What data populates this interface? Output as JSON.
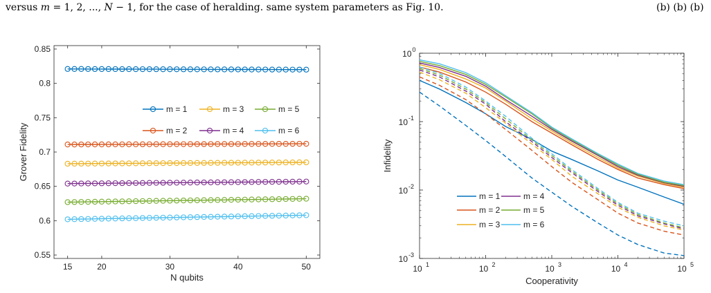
{
  "caption": {
    "prefix": "versus",
    "var": "m",
    "middle": "= 1, 2, ..., ",
    "var2": "N",
    "suffix": " − 1, for the case of heralding. same system parameters as Fig. 10.",
    "right_fragment": "(b) (b) (b)"
  },
  "chart_data": [
    {
      "type": "line",
      "xlabel": "N qubits",
      "ylabel": "Grover Fidelity",
      "xlim": [
        13,
        52
      ],
      "ylim": [
        0.545,
        0.855
      ],
      "xticks": [
        15,
        20,
        30,
        40,
        50
      ],
      "yticks": [
        0.55,
        0.6,
        0.65,
        0.7,
        0.75,
        0.8,
        0.85
      ],
      "ytick_labels": [
        "0.55",
        "0.6",
        "0.65",
        "0.7",
        "0.75",
        "0.8",
        "0.85"
      ],
      "grid": false,
      "legend": {
        "placement": "top-right",
        "columns": 3
      },
      "x": [
        15,
        16,
        17,
        18,
        19,
        20,
        21,
        22,
        23,
        24,
        25,
        26,
        27,
        28,
        29,
        30,
        31,
        32,
        33,
        34,
        35,
        36,
        37,
        38,
        39,
        40,
        41,
        42,
        43,
        44,
        45,
        46,
        47,
        48,
        49,
        50
      ],
      "series": [
        {
          "name": "m = 1",
          "color": "#0072BD",
          "y_start": 0.821,
          "y_end": 0.82
        },
        {
          "name": "m = 2",
          "color": "#D95319",
          "y_start": 0.711,
          "y_end": 0.712
        },
        {
          "name": "m = 3",
          "color": "#EDB120",
          "y_start": 0.683,
          "y_end": 0.685
        },
        {
          "name": "m = 4",
          "color": "#7E2F8E",
          "y_start": 0.654,
          "y_end": 0.657
        },
        {
          "name": "m = 5",
          "color": "#77AC30",
          "y_start": 0.627,
          "y_end": 0.632
        },
        {
          "name": "m = 6",
          "color": "#4DBEEE",
          "y_start": 0.602,
          "y_end": 0.608
        }
      ]
    },
    {
      "type": "line",
      "xlabel": "Cooperativity",
      "ylabel": "Infidelity",
      "xscale": "log",
      "yscale": "log",
      "xlim": [
        10,
        100000
      ],
      "ylim": [
        0.001,
        1
      ],
      "xticks": [
        {
          "base": "10",
          "exp": "1",
          "value": 10
        },
        {
          "base": "10",
          "exp": "2",
          "value": 100
        },
        {
          "base": "10",
          "exp": "3",
          "value": 1000
        },
        {
          "base": "10",
          "exp": "4",
          "value": 10000
        },
        {
          "base": "10",
          "exp": "5",
          "value": 100000
        }
      ],
      "yticks": [
        {
          "base": "10",
          "exp": "-3",
          "value": 0.001
        },
        {
          "base": "10",
          "exp": "-2",
          "value": 0.01
        },
        {
          "base": "10",
          "exp": "-1",
          "value": 0.1
        },
        {
          "base": "10",
          "exp": "0",
          "value": 1
        }
      ],
      "grid": false,
      "legend": {
        "placement": "bottom-left",
        "columns": 2
      },
      "x": [
        10,
        20,
        50,
        100,
        200,
        500,
        1000,
        2000,
        5000,
        10000,
        20000,
        50000,
        100000
      ],
      "series": [
        {
          "name": "m = 1",
          "color": "#0072BD",
          "solid": [
            0.4,
            0.3,
            0.19,
            0.13,
            0.085,
            0.055,
            0.037,
            0.028,
            0.019,
            0.014,
            0.011,
            0.0079,
            0.0062
          ],
          "dashed": [
            0.27,
            0.17,
            0.088,
            0.053,
            0.031,
            0.015,
            0.0093,
            0.0058,
            0.0033,
            0.0022,
            0.0016,
            0.0012,
            0.0011
          ]
        },
        {
          "name": "m = 2",
          "color": "#D95319",
          "solid": [
            0.63,
            0.53,
            0.38,
            0.27,
            0.18,
            0.1,
            0.068,
            0.046,
            0.028,
            0.02,
            0.015,
            0.012,
            0.0105
          ],
          "dashed": [
            0.45,
            0.34,
            0.21,
            0.13,
            0.077,
            0.038,
            0.022,
            0.013,
            0.0072,
            0.0046,
            0.0033,
            0.0025,
            0.0022
          ]
        },
        {
          "name": "m = 3",
          "color": "#EDB120",
          "solid": [
            0.68,
            0.58,
            0.42,
            0.31,
            0.2,
            0.11,
            0.073,
            0.049,
            0.03,
            0.021,
            0.016,
            0.0125,
            0.011
          ],
          "dashed": [
            0.53,
            0.41,
            0.26,
            0.16,
            0.095,
            0.047,
            0.028,
            0.016,
            0.0088,
            0.0056,
            0.004,
            0.003,
            0.0026
          ]
        },
        {
          "name": "m = 4",
          "color": "#7E2F8E",
          "solid": [
            0.72,
            0.62,
            0.46,
            0.33,
            0.21,
            0.12,
            0.077,
            0.052,
            0.032,
            0.022,
            0.0165,
            0.0128,
            0.0113
          ],
          "dashed": [
            0.57,
            0.45,
            0.28,
            0.18,
            0.1,
            0.051,
            0.03,
            0.018,
            0.0095,
            0.006,
            0.0042,
            0.0032,
            0.0027
          ]
        },
        {
          "name": "m = 5",
          "color": "#77AC30",
          "solid": [
            0.76,
            0.66,
            0.49,
            0.35,
            0.23,
            0.13,
            0.08,
            0.054,
            0.033,
            0.023,
            0.017,
            0.013,
            0.0116
          ],
          "dashed": [
            0.6,
            0.48,
            0.3,
            0.19,
            0.11,
            0.054,
            0.032,
            0.019,
            0.01,
            0.0063,
            0.0044,
            0.0033,
            0.0028
          ]
        },
        {
          "name": "m = 6",
          "color": "#4DBEEE",
          "solid": [
            0.8,
            0.7,
            0.52,
            0.37,
            0.24,
            0.135,
            0.083,
            0.056,
            0.034,
            0.024,
            0.0175,
            0.0135,
            0.012
          ],
          "dashed": [
            0.63,
            0.51,
            0.32,
            0.2,
            0.12,
            0.057,
            0.034,
            0.02,
            0.0105,
            0.0066,
            0.0046,
            0.0035,
            0.003
          ]
        }
      ]
    }
  ]
}
